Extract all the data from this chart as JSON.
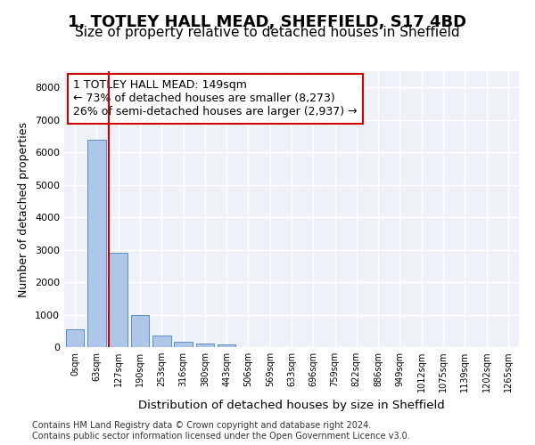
{
  "title_line1": "1, TOTLEY HALL MEAD, SHEFFIELD, S17 4BD",
  "title_line2": "Size of property relative to detached houses in Sheffield",
  "xlabel": "Distribution of detached houses by size in Sheffield",
  "ylabel": "Number of detached properties",
  "bin_labels": [
    "0sqm",
    "63sqm",
    "127sqm",
    "190sqm",
    "253sqm",
    "316sqm",
    "380sqm",
    "443sqm",
    "506sqm",
    "569sqm",
    "633sqm",
    "696sqm",
    "759sqm",
    "822sqm",
    "886sqm",
    "949sqm",
    "1012sqm",
    "1075sqm",
    "1139sqm",
    "1202sqm",
    "1265sqm"
  ],
  "bar_values": [
    560,
    6400,
    2920,
    990,
    360,
    165,
    100,
    70,
    0,
    0,
    0,
    0,
    0,
    0,
    0,
    0,
    0,
    0,
    0,
    0,
    0
  ],
  "bar_color": "#aec6e8",
  "bar_edge_color": "#5a8fc2",
  "background_color": "#eef2f8",
  "grid_color": "#ffffff",
  "vline_x": 2,
  "vline_color": "#cc0000",
  "annotation_text": "1 TOTLEY HALL MEAD: 149sqm\n← 73% of detached houses are smaller (8,273)\n26% of semi-detached houses are larger (2,937) →",
  "annotation_box_color": "#ffffff",
  "annotation_box_edge": "#cc0000",
  "ylim": [
    0,
    8500
  ],
  "yticks": [
    0,
    1000,
    2000,
    3000,
    4000,
    5000,
    6000,
    7000,
    8000
  ],
  "footer_text": "Contains HM Land Registry data © Crown copyright and database right 2024.\nContains public sector information licensed under the Open Government Licence v3.0.",
  "title_fontsize": 13,
  "subtitle_fontsize": 11,
  "axis_label_fontsize": 9,
  "tick_fontsize": 8,
  "annotation_fontsize": 9
}
